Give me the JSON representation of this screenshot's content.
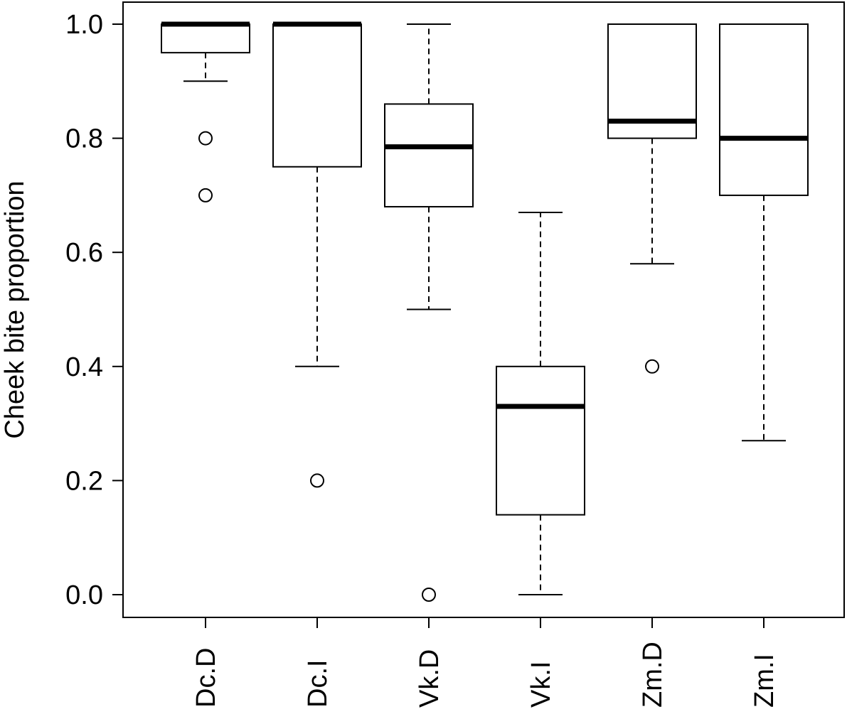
{
  "chart_data": {
    "type": "boxplot",
    "title": "",
    "xlabel": "",
    "ylabel": "Cheek bite proportion",
    "ylim": [
      0.0,
      1.0
    ],
    "yticks": [
      "0.0",
      "0.2",
      "0.4",
      "0.6",
      "0.8",
      "1.0"
    ],
    "grid": false,
    "categories": [
      "Dc.D",
      "Dc.I",
      "Vk.D",
      "Vk.I",
      "Zm.D",
      "Zm.I"
    ],
    "boxes": [
      {
        "label": "Dc.D",
        "whisker_low": 0.9,
        "q1": 0.95,
        "median": 1.0,
        "q3": 1.0,
        "whisker_high": 1.0,
        "outliers": [
          0.8,
          0.7
        ]
      },
      {
        "label": "Dc.I",
        "whisker_low": 0.4,
        "q1": 0.75,
        "median": 1.0,
        "q3": 1.0,
        "whisker_high": 1.0,
        "outliers": [
          0.2
        ]
      },
      {
        "label": "Vk.D",
        "whisker_low": 0.5,
        "q1": 0.68,
        "median": 0.785,
        "q3": 0.86,
        "whisker_high": 1.0,
        "outliers": [
          0.0
        ]
      },
      {
        "label": "Vk.I",
        "whisker_low": 0.0,
        "q1": 0.14,
        "median": 0.33,
        "q3": 0.4,
        "whisker_high": 0.67,
        "outliers": []
      },
      {
        "label": "Zm.D",
        "whisker_low": 0.58,
        "q1": 0.8,
        "median": 0.83,
        "q3": 1.0,
        "whisker_high": 1.0,
        "outliers": [
          0.4
        ]
      },
      {
        "label": "Zm.I",
        "whisker_low": 0.27,
        "q1": 0.7,
        "median": 0.8,
        "q3": 1.0,
        "whisker_high": 1.0,
        "outliers": []
      }
    ]
  }
}
